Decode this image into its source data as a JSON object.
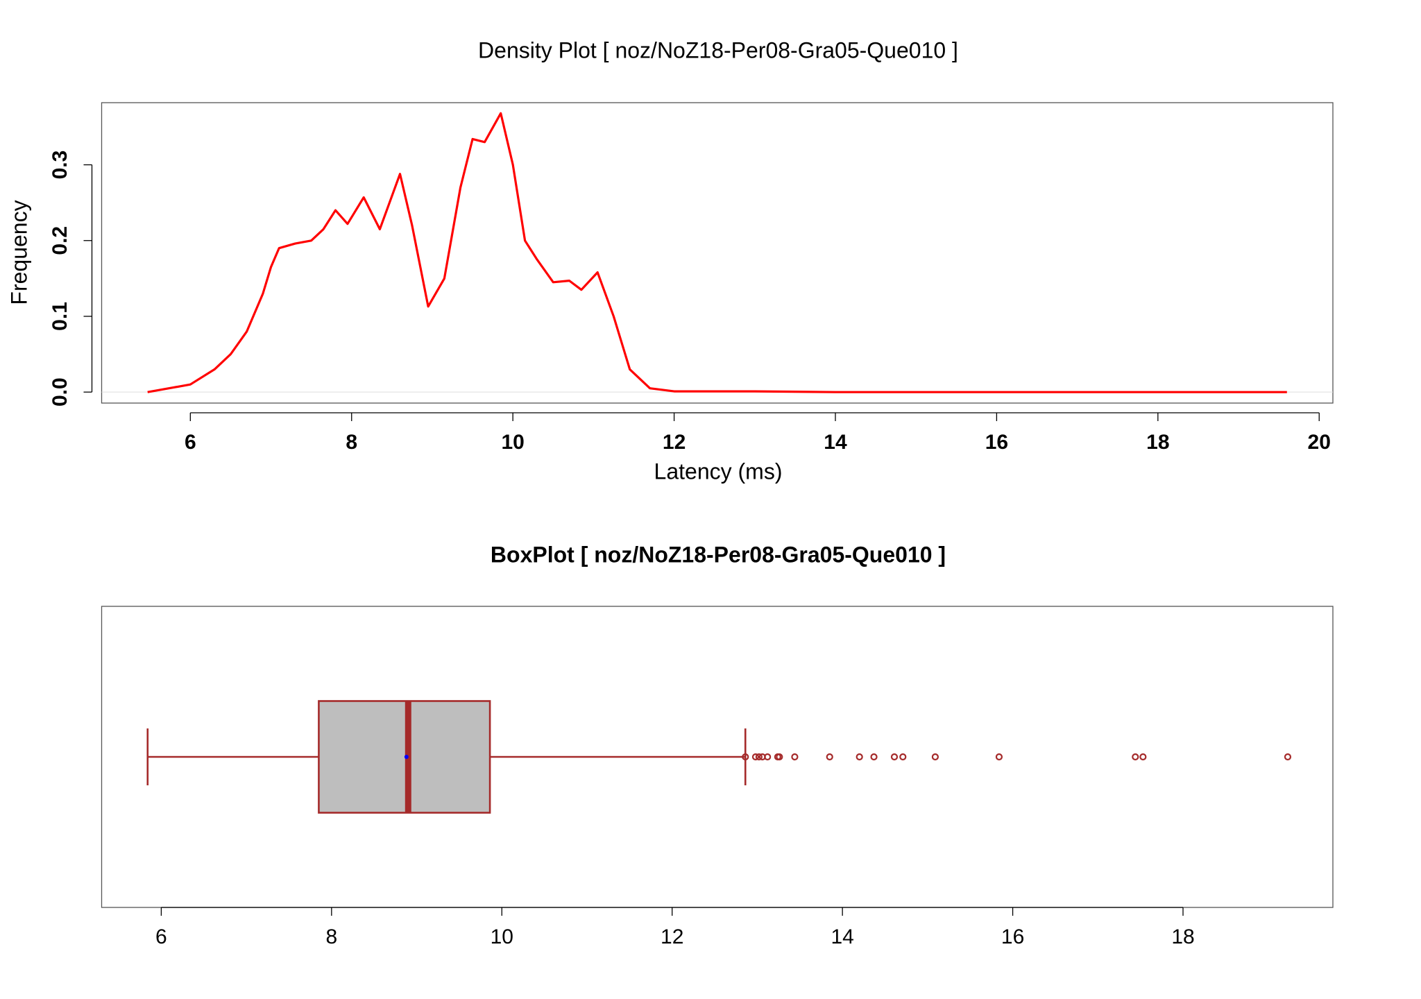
{
  "chart_data": [
    {
      "type": "line",
      "title": "Density Plot [ noz/NoZ18-Per08-Gra05-Que010 ]",
      "x_label": "Latency (ms)",
      "y_label": "Frequency",
      "color": "#ff0000",
      "x": [
        5.47,
        6.0,
        6.3,
        6.5,
        6.7,
        6.9,
        7.0,
        7.1,
        7.3,
        7.5,
        7.65,
        7.8,
        7.95,
        8.15,
        8.35,
        8.6,
        8.75,
        8.95,
        9.15,
        9.35,
        9.5,
        9.65,
        9.85,
        10.0,
        10.15,
        10.3,
        10.5,
        10.7,
        10.85,
        11.05,
        11.25,
        11.45,
        11.7,
        12.0,
        13.0,
        14.0,
        16.0,
        18.0,
        19.6
      ],
      "values": [
        0,
        0.01,
        0.03,
        0.05,
        0.08,
        0.13,
        0.165,
        0.19,
        0.196,
        0.2,
        0.215,
        0.24,
        0.222,
        0.257,
        0.215,
        0.288,
        0.22,
        0.113,
        0.15,
        0.27,
        0.334,
        0.33,
        0.368,
        0.3,
        0.2,
        0.175,
        0.145,
        0.147,
        0.135,
        0.158,
        0.1,
        0.03,
        0.005,
        0.001,
        0.001,
        0,
        0,
        0,
        0
      ],
      "xlim": [
        4.9,
        20.17
      ],
      "ylim": [
        -0.0145,
        0.382
      ],
      "xticks": [
        6,
        8,
        10,
        12,
        14,
        16,
        18,
        20
      ],
      "yticks": [
        {
          "value": 0,
          "label": "0.0"
        },
        0.1,
        0.2,
        0.3
      ]
    },
    {
      "type": "box",
      "title": "BoxPlot [ noz/NoZ18-Per08-Gra05-Que010 ]",
      "color": "#a52a2a",
      "fill": "#bebebe",
      "mean_color": "#0000ff",
      "min": 5.84,
      "q1": 7.85,
      "median": 8.9,
      "q3": 9.86,
      "max": 12.86,
      "mean": 8.88,
      "outliers": [
        12.86,
        12.98,
        13.02,
        13.06,
        13.12,
        13.24,
        13.26,
        13.44,
        13.85,
        14.2,
        14.37,
        14.61,
        14.71,
        15.09,
        15.84,
        17.44,
        17.53,
        19.23
      ],
      "xlim": [
        5.3,
        19.76
      ],
      "xticks": [
        6,
        8,
        10,
        12,
        14,
        16,
        18
      ]
    }
  ]
}
